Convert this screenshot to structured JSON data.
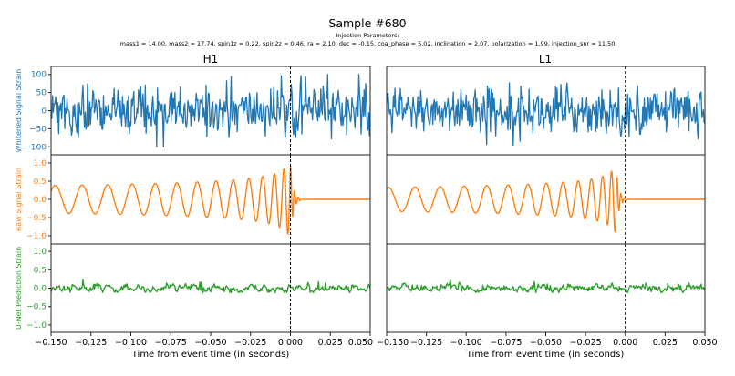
{
  "title": "Sample #680",
  "subtitle_heading": "Injection Parameters:",
  "subtitle_params": "mass1 = 14.00, mass2 = 17.74, spin1z = 0.22, spin2z = 0.46, ra = 2.10, dec = -0.15, coa_phase = 5.02, inclination = 2.07, polarization = 1.99, injection_snr = 11.50",
  "chart_data": [
    {
      "type": "line",
      "detector": "H1",
      "xlabel": "Time from event time (in seconds)",
      "xlim": [
        -0.15,
        0.05
      ],
      "xticks": [
        "-0.150",
        "-0.125",
        "-0.100",
        "-0.075",
        "-0.050",
        "-0.025",
        "0.000",
        "0.025",
        "0.050"
      ],
      "event_marker": {
        "x": 0.0,
        "style": "dashed",
        "color": "#000000"
      },
      "panels": [
        {
          "ylabel": "Whitened Signal Strain",
          "color": "#1f77b4",
          "ylim": [
            -122,
            122
          ],
          "yticks": [
            "100",
            "50",
            "0",
            "-50",
            "-100"
          ],
          "kind": "noise",
          "std": 38,
          "range": [
            -100,
            100
          ]
        },
        {
          "ylabel": "Raw Signal Strain",
          "color": "#ff7f0e",
          "ylim": [
            -1.225,
            1.225
          ],
          "yticks": [
            "1.0",
            "0.5",
            "0.0",
            "-0.5",
            "-1.0"
          ],
          "kind": "chirp",
          "merger_time": 0.0,
          "start_value": 0.22,
          "early_amplitude": 0.38,
          "peak_amplitude": 1.0
        },
        {
          "ylabel": "U-Net Prediction Strain",
          "color": "#2ca02c",
          "ylim": [
            -1.2,
            1.2
          ],
          "yticks": [
            "1.0",
            "0.5",
            "0.0",
            "-0.5",
            "-1.0"
          ],
          "kind": "smooth-noise",
          "std": 0.07,
          "range": [
            -0.12,
            0.3
          ]
        }
      ]
    },
    {
      "type": "line",
      "detector": "L1",
      "xlabel": "Time from event time (in seconds)",
      "xlim": [
        -0.15,
        0.05
      ],
      "xticks": [
        "-0.150",
        "-0.125",
        "-0.100",
        "-0.075",
        "-0.050",
        "-0.025",
        "0.000",
        "0.025",
        "0.050"
      ],
      "event_marker": {
        "x": 0.0,
        "style": "dashed",
        "color": "#000000"
      },
      "panels": [
        {
          "ylabel": "",
          "color": "#1f77b4",
          "ylim": [
            -122,
            122
          ],
          "yticks": [],
          "kind": "noise",
          "std": 38,
          "range": [
            -100,
            100
          ]
        },
        {
          "ylabel": "",
          "color": "#ff7f0e",
          "ylim": [
            -1.225,
            1.225
          ],
          "yticks": [],
          "kind": "chirp",
          "merger_time": -0.006,
          "start_value": 0.3,
          "early_amplitude": 0.33,
          "peak_amplitude": 0.95
        },
        {
          "ylabel": "",
          "color": "#2ca02c",
          "ylim": [
            -1.2,
            1.2
          ],
          "yticks": [],
          "kind": "smooth-noise",
          "std": 0.07,
          "range": [
            -0.12,
            0.3
          ]
        }
      ]
    }
  ]
}
